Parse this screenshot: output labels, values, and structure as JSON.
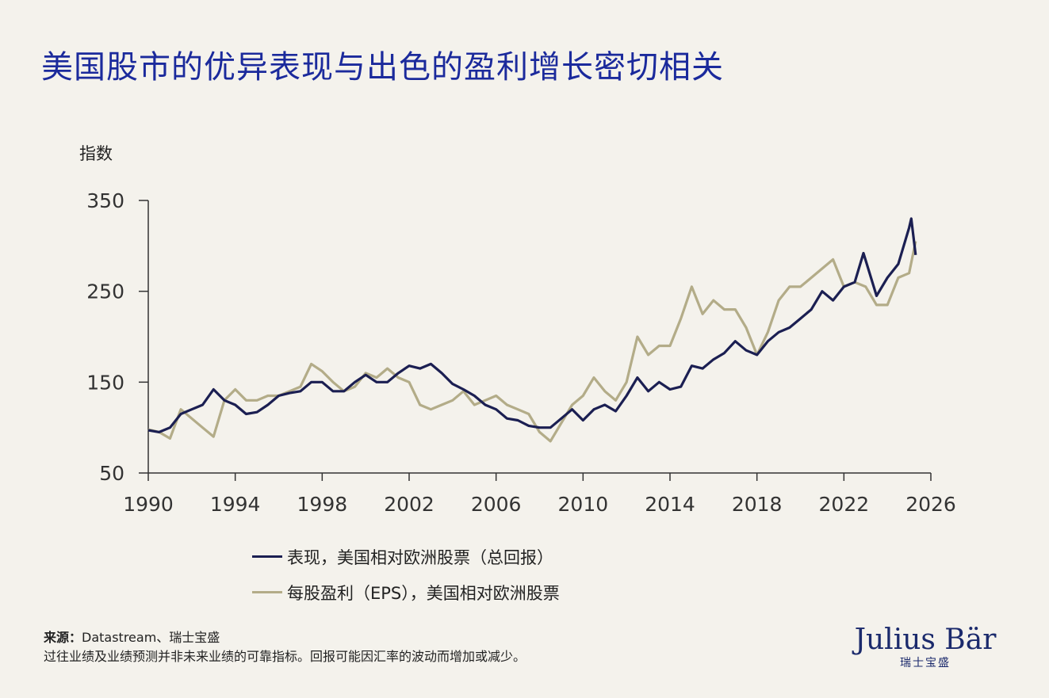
{
  "title": "美国股市的优异表现与出色的盈利增长密切相关",
  "chart_data": {
    "type": "line",
    "ylabel": "指数",
    "xlim": [
      1990,
      2026
    ],
    "ylim": [
      50,
      350
    ],
    "xticks": [
      1990,
      1994,
      1998,
      2002,
      2006,
      2010,
      2014,
      2018,
      2022,
      2026
    ],
    "yticks": [
      50,
      150,
      250,
      350
    ],
    "grid": false,
    "legend_placement": "bottom",
    "series": [
      {
        "name": "表现，美国相对欧洲股票（总回报）",
        "color": "#1b1f52",
        "x": [
          1990,
          1990.5,
          1991,
          1991.5,
          1992,
          1992.5,
          1993,
          1993.5,
          1994,
          1994.5,
          1995,
          1995.5,
          1996,
          1996.5,
          1997,
          1997.5,
          1998,
          1998.5,
          1999,
          1999.5,
          2000,
          2000.5,
          2001,
          2001.5,
          2002,
          2002.5,
          2003,
          2003.5,
          2004,
          2004.5,
          2005,
          2005.5,
          2006,
          2006.5,
          2007,
          2007.5,
          2008,
          2008.5,
          2009,
          2009.5,
          2010,
          2010.5,
          2011,
          2011.5,
          2012,
          2012.5,
          2013,
          2013.5,
          2014,
          2014.5,
          2015,
          2015.5,
          2016,
          2016.5,
          2017,
          2017.5,
          2018,
          2018.5,
          2019,
          2019.5,
          2020,
          2020.5,
          2021,
          2021.5,
          2022,
          2022.5,
          2022.9,
          2023.5,
          2024,
          2024.5,
          2025,
          2025.1,
          2025.3
        ],
        "values": [
          97,
          95,
          100,
          115,
          120,
          125,
          142,
          130,
          125,
          115,
          117,
          125,
          135,
          138,
          140,
          150,
          150,
          140,
          140,
          150,
          158,
          150,
          150,
          160,
          168,
          165,
          170,
          160,
          148,
          142,
          135,
          125,
          120,
          110,
          108,
          102,
          100,
          100,
          110,
          120,
          108,
          120,
          125,
          118,
          135,
          155,
          140,
          150,
          142,
          145,
          168,
          165,
          175,
          182,
          195,
          185,
          180,
          195,
          205,
          210,
          220,
          230,
          250,
          240,
          255,
          260,
          292,
          245,
          265,
          280,
          320,
          330,
          290
        ]
      },
      {
        "name": "每股盈利（EPS），美国相对欧洲股票",
        "color": "#b3ac88",
        "x": [
          1990,
          1990.5,
          1991,
          1991.5,
          1992,
          1992.5,
          1993,
          1993.5,
          1994,
          1994.5,
          1995,
          1995.5,
          1996,
          1996.5,
          1997,
          1997.5,
          1998,
          1998.5,
          1999,
          1999.5,
          2000,
          2000.5,
          2001,
          2001.5,
          2002,
          2002.5,
          2003,
          2003.5,
          2004,
          2004.5,
          2005,
          2005.5,
          2006,
          2006.5,
          2007,
          2007.5,
          2008,
          2008.5,
          2009,
          2009.5,
          2010,
          2010.5,
          2011,
          2011.5,
          2012,
          2012.5,
          2013,
          2013.5,
          2014,
          2014.5,
          2015,
          2015.5,
          2016,
          2016.5,
          2017,
          2017.5,
          2018,
          2018.5,
          2019,
          2019.5,
          2020,
          2020.5,
          2021,
          2021.5,
          2022,
          2022.5,
          2023,
          2023.5,
          2024,
          2024.5,
          2025,
          2025.3
        ],
        "values": [
          98,
          95,
          88,
          120,
          110,
          100,
          90,
          130,
          142,
          130,
          130,
          135,
          135,
          140,
          145,
          170,
          162,
          150,
          140,
          145,
          160,
          155,
          165,
          155,
          150,
          125,
          120,
          125,
          130,
          140,
          125,
          130,
          135,
          125,
          120,
          115,
          95,
          85,
          105,
          125,
          135,
          155,
          140,
          130,
          150,
          200,
          180,
          190,
          190,
          220,
          255,
          225,
          240,
          230,
          230,
          210,
          180,
          205,
          240,
          255,
          255,
          265,
          275,
          285,
          255,
          260,
          255,
          235,
          235,
          265,
          270,
          305
        ]
      }
    ]
  },
  "source": {
    "label": "来源：",
    "text": "Datastream、瑞士宝盛",
    "disclaimer": "过往业绩及业绩预测并非未来业绩的可靠指标。回报可能因汇率的波动而增加或减少。"
  },
  "logo": {
    "main": "Julius Bär",
    "sub": "瑞士宝盛"
  }
}
